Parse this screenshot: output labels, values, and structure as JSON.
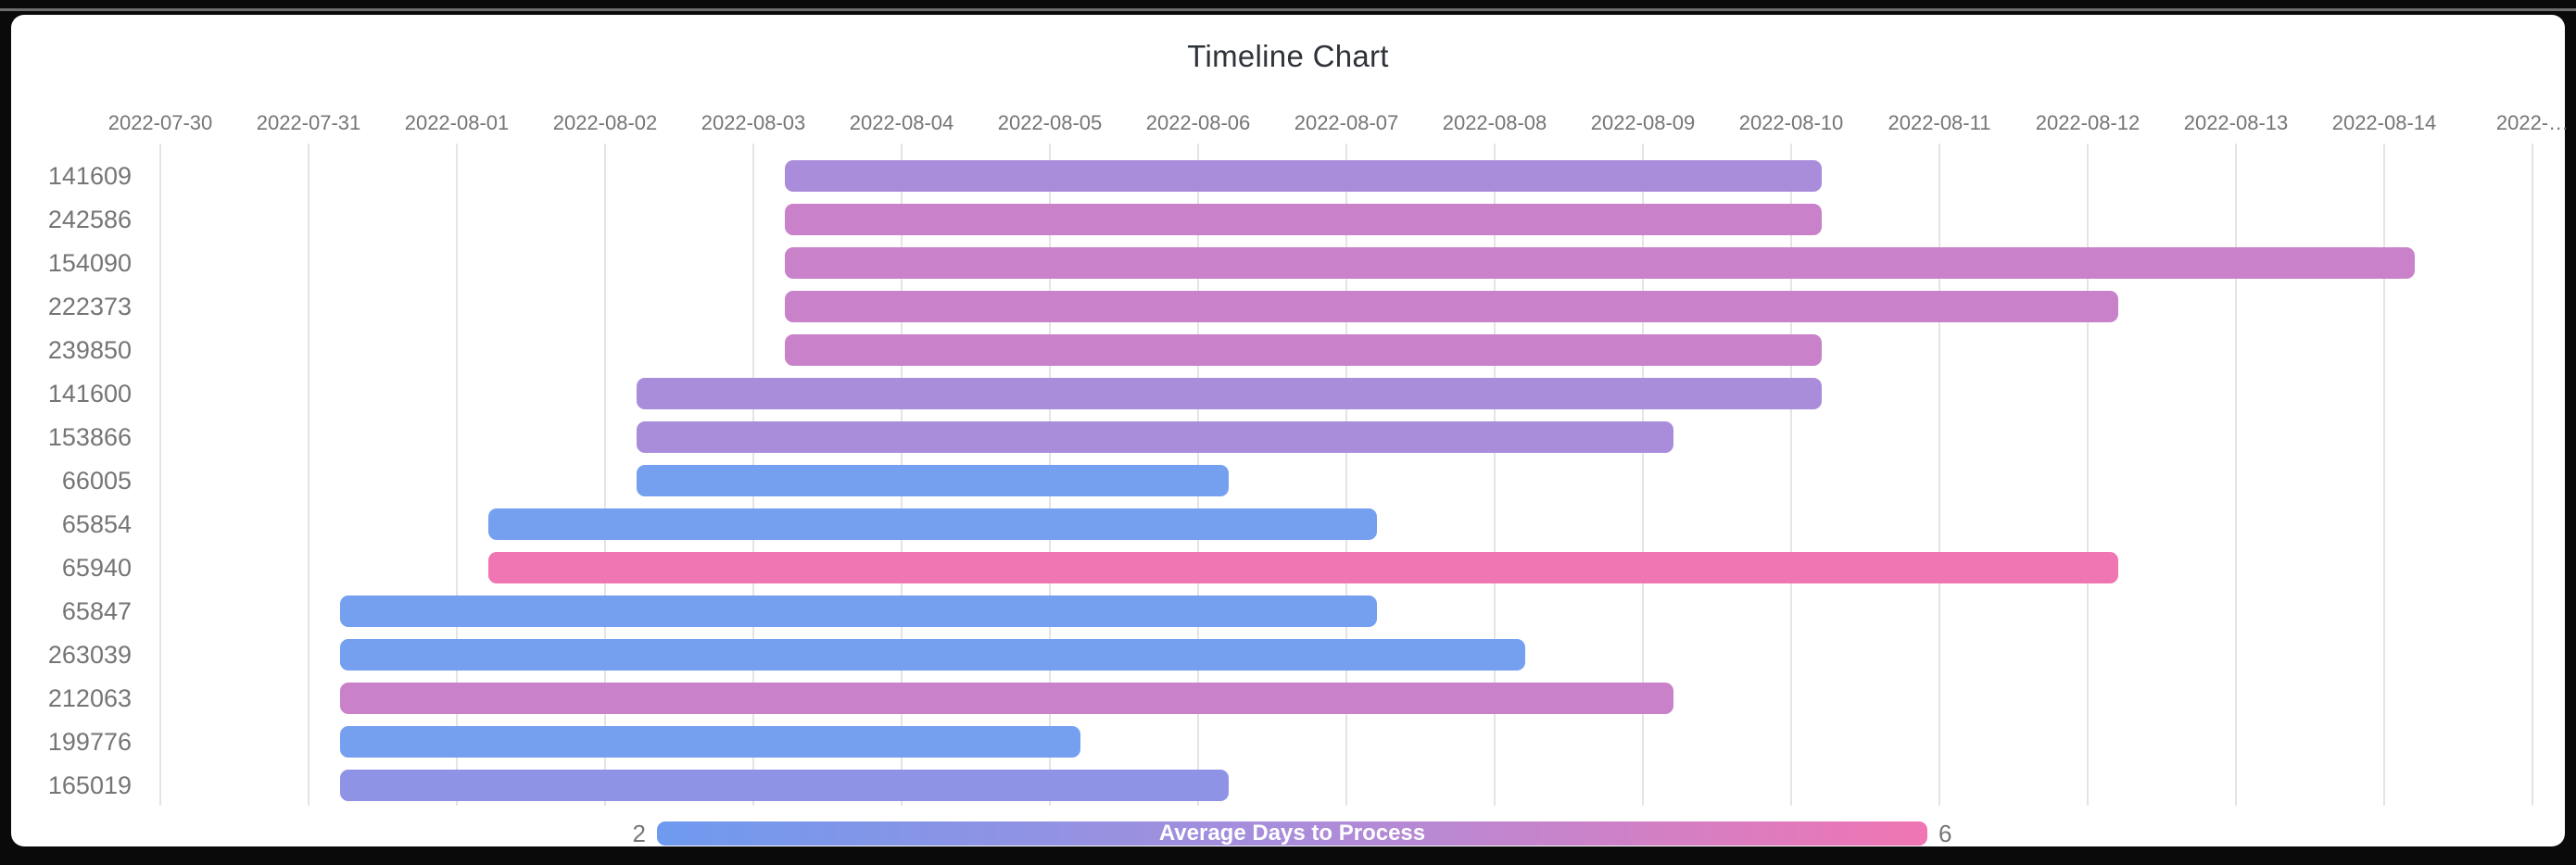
{
  "frame": {
    "background": "#0a0a0a",
    "card_background": "#ffffff"
  },
  "chart_data": {
    "type": "timeline",
    "title": "Timeline Chart",
    "grid": true,
    "x_axis": {
      "tick_labels": [
        "2022-07-30",
        "2022-07-31",
        "2022-08-01",
        "2022-08-02",
        "2022-08-03",
        "2022-08-04",
        "2022-08-05",
        "2022-08-06",
        "2022-08-07",
        "2022-08-08",
        "2022-08-09",
        "2022-08-10",
        "2022-08-11",
        "2022-08-12",
        "2022-08-13",
        "2022-08-14",
        "2022-…"
      ],
      "start_date": "2022-07-30",
      "days_per_tick": 1,
      "label_color": "#757575",
      "gridline_color": "#e4e4e6"
    },
    "rows": [
      {
        "label": "141609",
        "start": "2022-08-03",
        "end": "2022-08-10",
        "duration_days": 7,
        "avg_days_to_process": 4,
        "color": "#a98ddb"
      },
      {
        "label": "242586",
        "start": "2022-08-03",
        "end": "2022-08-10",
        "duration_days": 7,
        "avg_days_to_process": 5,
        "color": "#c981ca"
      },
      {
        "label": "154090",
        "start": "2022-08-03",
        "end": "2022-08-14",
        "duration_days": 11,
        "avg_days_to_process": 5,
        "color": "#c981ca"
      },
      {
        "label": "222373",
        "start": "2022-08-03",
        "end": "2022-08-12",
        "duration_days": 9,
        "avg_days_to_process": 5,
        "color": "#c981ca"
      },
      {
        "label": "239850",
        "start": "2022-08-03",
        "end": "2022-08-10",
        "duration_days": 7,
        "avg_days_to_process": 5,
        "color": "#c981ca"
      },
      {
        "label": "141600",
        "start": "2022-08-02",
        "end": "2022-08-10",
        "duration_days": 8,
        "avg_days_to_process": 4,
        "color": "#a98ddb"
      },
      {
        "label": "153866",
        "start": "2022-08-02",
        "end": "2022-08-09",
        "duration_days": 7,
        "avg_days_to_process": 4,
        "color": "#a98ddb"
      },
      {
        "label": "66005",
        "start": "2022-08-02",
        "end": "2022-08-06",
        "duration_days": 4,
        "avg_days_to_process": 2,
        "color": "#74a0ef"
      },
      {
        "label": "65854",
        "start": "2022-08-01",
        "end": "2022-08-07",
        "duration_days": 6,
        "avg_days_to_process": 2,
        "color": "#74a0ef"
      },
      {
        "label": "65940",
        "start": "2022-08-01",
        "end": "2022-08-12",
        "duration_days": 11,
        "avg_days_to_process": 6,
        "color": "#f075b3"
      },
      {
        "label": "65847",
        "start": "2022-07-31",
        "end": "2022-08-07",
        "duration_days": 7,
        "avg_days_to_process": 2,
        "color": "#74a0ef"
      },
      {
        "label": "263039",
        "start": "2022-07-31",
        "end": "2022-08-08",
        "duration_days": 8,
        "avg_days_to_process": 2,
        "color": "#74a0ef"
      },
      {
        "label": "212063",
        "start": "2022-07-31",
        "end": "2022-08-09",
        "duration_days": 9,
        "avg_days_to_process": 5,
        "color": "#c981ca"
      },
      {
        "label": "199776",
        "start": "2022-07-31",
        "end": "2022-08-05",
        "duration_days": 5,
        "avg_days_to_process": 2,
        "color": "#74a0ef"
      },
      {
        "label": "165019",
        "start": "2022-07-31",
        "end": "2022-08-06",
        "duration_days": 6,
        "avg_days_to_process": 3,
        "color": "#8e93e6"
      }
    ],
    "legend": {
      "title": "Average Days to Process",
      "min_value": "2",
      "max_value": "6",
      "min_color": "#6e9aef",
      "mid_color": "#a98ddb",
      "max_color": "#f075b3",
      "position": "bottom"
    }
  }
}
